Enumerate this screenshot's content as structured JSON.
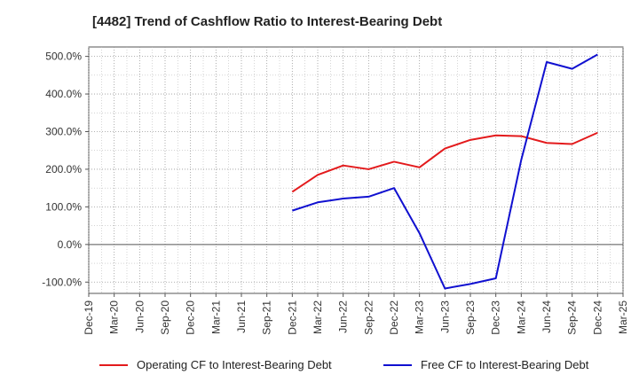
{
  "chart_data": {
    "type": "line",
    "title": "[4482]  Trend of Cashflow Ratio to Interest-Bearing Debt",
    "xlabel": "",
    "ylabel": "",
    "x": [
      "Dec-19",
      "Mar-20",
      "Jun-20",
      "Sep-20",
      "Dec-20",
      "Mar-21",
      "Jun-21",
      "Sep-21",
      "Dec-21",
      "Mar-22",
      "Jun-22",
      "Sep-22",
      "Dec-22",
      "Mar-23",
      "Jun-23",
      "Sep-23",
      "Dec-23",
      "Mar-24",
      "Jun-24",
      "Sep-24",
      "Dec-24",
      "Mar-25"
    ],
    "y_ticks": [
      "500.0%",
      "400.0%",
      "300.0%",
      "200.0%",
      "100.0%",
      "0.0%",
      "-100.0%"
    ],
    "y_tick_values": [
      500,
      400,
      300,
      200,
      100,
      0,
      -100
    ],
    "ylim": [
      -130,
      525
    ],
    "grid": true,
    "legend_position": "bottom",
    "series": [
      {
        "name": "Operating CF to Interest-Bearing Debt",
        "color": "#e31a1c",
        "values": [
          null,
          null,
          null,
          null,
          null,
          null,
          null,
          null,
          140,
          185,
          210,
          200,
          220,
          205,
          255,
          278,
          290,
          288,
          270,
          267,
          297,
          null
        ]
      },
      {
        "name": "Free CF to Interest-Bearing Debt",
        "color": "#1010d0",
        "values": [
          null,
          null,
          null,
          null,
          null,
          null,
          null,
          null,
          90,
          112,
          122,
          127,
          150,
          30,
          -117,
          -105,
          -90,
          225,
          485,
          467,
          505,
          null
        ]
      }
    ]
  }
}
